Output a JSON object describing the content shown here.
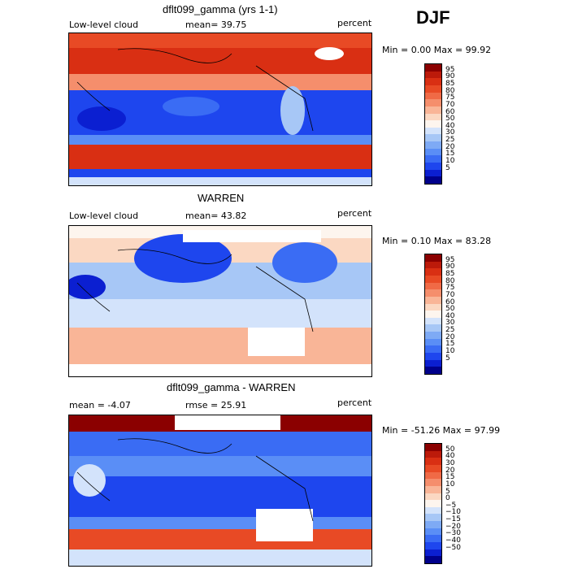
{
  "season": "DJF",
  "colors": {
    "abs_scale": [
      "#00008b",
      "#0b1fd1",
      "#1e46ee",
      "#3a6cf4",
      "#5a8ef6",
      "#7eaaf5",
      "#a7c7f6",
      "#d3e3fb",
      "#fdf5ee",
      "#fbd8c2",
      "#f9b597",
      "#f58e6c",
      "#f06a46",
      "#e84a25",
      "#d92f13",
      "#bc1a0a",
      "#8b0000"
    ],
    "diff_scale": [
      "#00008b",
      "#0b1fd1",
      "#1e46ee",
      "#3a6cf4",
      "#5a8ef6",
      "#7eaaf5",
      "#a7c7f6",
      "#d3e3fb",
      "#fdf5ee",
      "#fbd8c2",
      "#f9b597",
      "#f58e6c",
      "#f06a46",
      "#e84a25",
      "#d92f13",
      "#bc1a0a",
      "#8b0000"
    ]
  },
  "panels": [
    {
      "title": "dflt099_gamma (yrs 1-1)",
      "left_label": "Low-level cloud",
      "mean_label": "mean=  39.75",
      "units": "percent",
      "minmax": "Min =    0.00 Max =   99.92",
      "scale": "abs",
      "ticks": [
        "95",
        "90",
        "85",
        "80",
        "75",
        "70",
        "60",
        "50",
        "40",
        "30",
        "25",
        "20",
        "15",
        "10",
        "5"
      ]
    },
    {
      "title": "WARREN",
      "left_label": "Low-level cloud",
      "mean_label": "mean=  43.82",
      "units": "percent",
      "minmax": "Min =    0.10 Max =   83.28",
      "scale": "abs",
      "ticks": [
        "95",
        "90",
        "85",
        "80",
        "75",
        "70",
        "60",
        "50",
        "40",
        "30",
        "25",
        "20",
        "15",
        "10",
        "5"
      ]
    },
    {
      "title": "dflt099_gamma - WARREN",
      "left_label": "mean =   -4.07",
      "mean_label": "rmse =  25.91",
      "units": "percent",
      "minmax": "Min = -51.26 Max =   97.99",
      "scale": "diff",
      "ticks": [
        "50",
        "40",
        "30",
        "20",
        "15",
        "10",
        "5",
        "0",
        "−5",
        "−10",
        "−15",
        "−20",
        "−30",
        "−40",
        "−50"
      ]
    }
  ],
  "chart_data": {
    "type": "heatmap",
    "title": "DJF",
    "description": "Three global contour maps of low-level cloud fraction (percent)",
    "panels": [
      {
        "name": "dflt099_gamma (yrs 1-1)",
        "variable": "Low-level cloud",
        "units": "percent",
        "mean": 39.75,
        "min": 0.0,
        "max": 99.92,
        "contour_levels": [
          5,
          10,
          15,
          20,
          25,
          30,
          40,
          50,
          60,
          70,
          75,
          80,
          85,
          90,
          95
        ]
      },
      {
        "name": "WARREN",
        "variable": "Low-level cloud",
        "units": "percent",
        "mean": 43.82,
        "min": 0.1,
        "max": 83.28,
        "contour_levels": [
          5,
          10,
          15,
          20,
          25,
          30,
          40,
          50,
          60,
          70,
          75,
          80,
          85,
          90,
          95
        ]
      },
      {
        "name": "dflt099_gamma - WARREN",
        "units": "percent",
        "mean": -4.07,
        "rmse": 25.91,
        "min": -51.26,
        "max": 97.99,
        "contour_levels": [
          -50,
          -40,
          -30,
          -20,
          -15,
          -10,
          -5,
          0,
          5,
          10,
          15,
          20,
          30,
          40,
          50
        ]
      }
    ]
  }
}
